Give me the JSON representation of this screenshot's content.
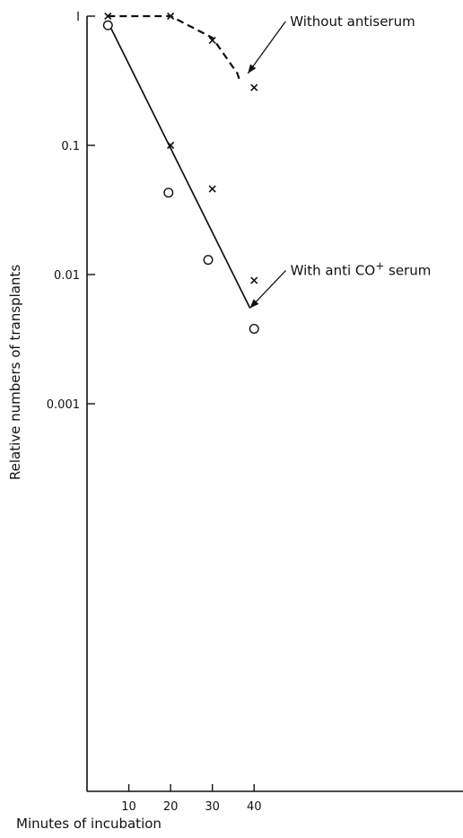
{
  "chart_data": {
    "type": "scatter",
    "xlabel": "Minutes of incubation",
    "ylabel": "Relative numbers of transplants",
    "y_scale": "log",
    "x_ticks": [
      10,
      20,
      30,
      40
    ],
    "x_tick_labels": [
      "10",
      "20",
      "30",
      "40"
    ],
    "y_ticks": [
      1,
      0.1,
      0.01,
      0.001
    ],
    "y_tick_labels": [
      "I",
      "0.1",
      "0.01",
      "0.001"
    ],
    "xlim": [
      0,
      90
    ],
    "ylim": [
      1e-06,
      1
    ],
    "grid": false,
    "series": [
      {
        "marker": "x",
        "points": [
          {
            "x": 5,
            "y": 1.0
          },
          {
            "x": 20,
            "y": 1.0
          },
          {
            "x": 30,
            "y": 0.65
          },
          {
            "x": 40,
            "y": 0.28
          },
          {
            "x": 20,
            "y": 0.1
          },
          {
            "x": 30,
            "y": 0.046
          },
          {
            "x": 40,
            "y": 0.009
          }
        ]
      },
      {
        "marker": "o",
        "points": [
          {
            "x": 5,
            "y": 0.85
          },
          {
            "x": 19.5,
            "y": 0.043
          },
          {
            "x": 29,
            "y": 0.013
          },
          {
            "x": 40,
            "y": 0.0038
          }
        ]
      }
    ],
    "lines": [
      {
        "style": "dashed",
        "points": [
          {
            "x": 5,
            "y": 1.0
          },
          {
            "x": 20,
            "y": 1.0
          },
          {
            "x": 30,
            "y": 0.68
          },
          {
            "x": 36,
            "y": 0.36
          },
          {
            "x": 36.5,
            "y": 0.32
          }
        ]
      },
      {
        "style": "solid",
        "points": [
          {
            "x": 5,
            "y": 0.9
          },
          {
            "x": 39,
            "y": 0.0055
          }
        ]
      }
    ],
    "annotations": [
      {
        "text": "Without antiserum",
        "x": 38.5,
        "y": 0.36
      },
      {
        "text": "With anti CO",
        "superscript": "+",
        "suffix": "serum",
        "x": 39,
        "y": 0.0055
      }
    ]
  }
}
